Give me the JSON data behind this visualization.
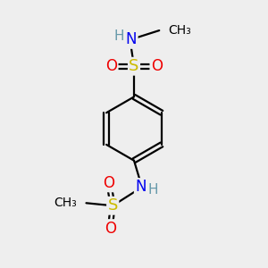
{
  "bg_color": "#eeeeee",
  "atom_colors": {
    "C": "#000000",
    "H": "#6699aa",
    "N": "#0000ee",
    "O": "#ee0000",
    "S": "#ccbb00"
  },
  "bond_color": "#000000",
  "bond_width": 1.6,
  "figsize": [
    3.0,
    3.0
  ],
  "dpi": 100,
  "xlim": [
    0,
    10
  ],
  "ylim": [
    0,
    10
  ]
}
